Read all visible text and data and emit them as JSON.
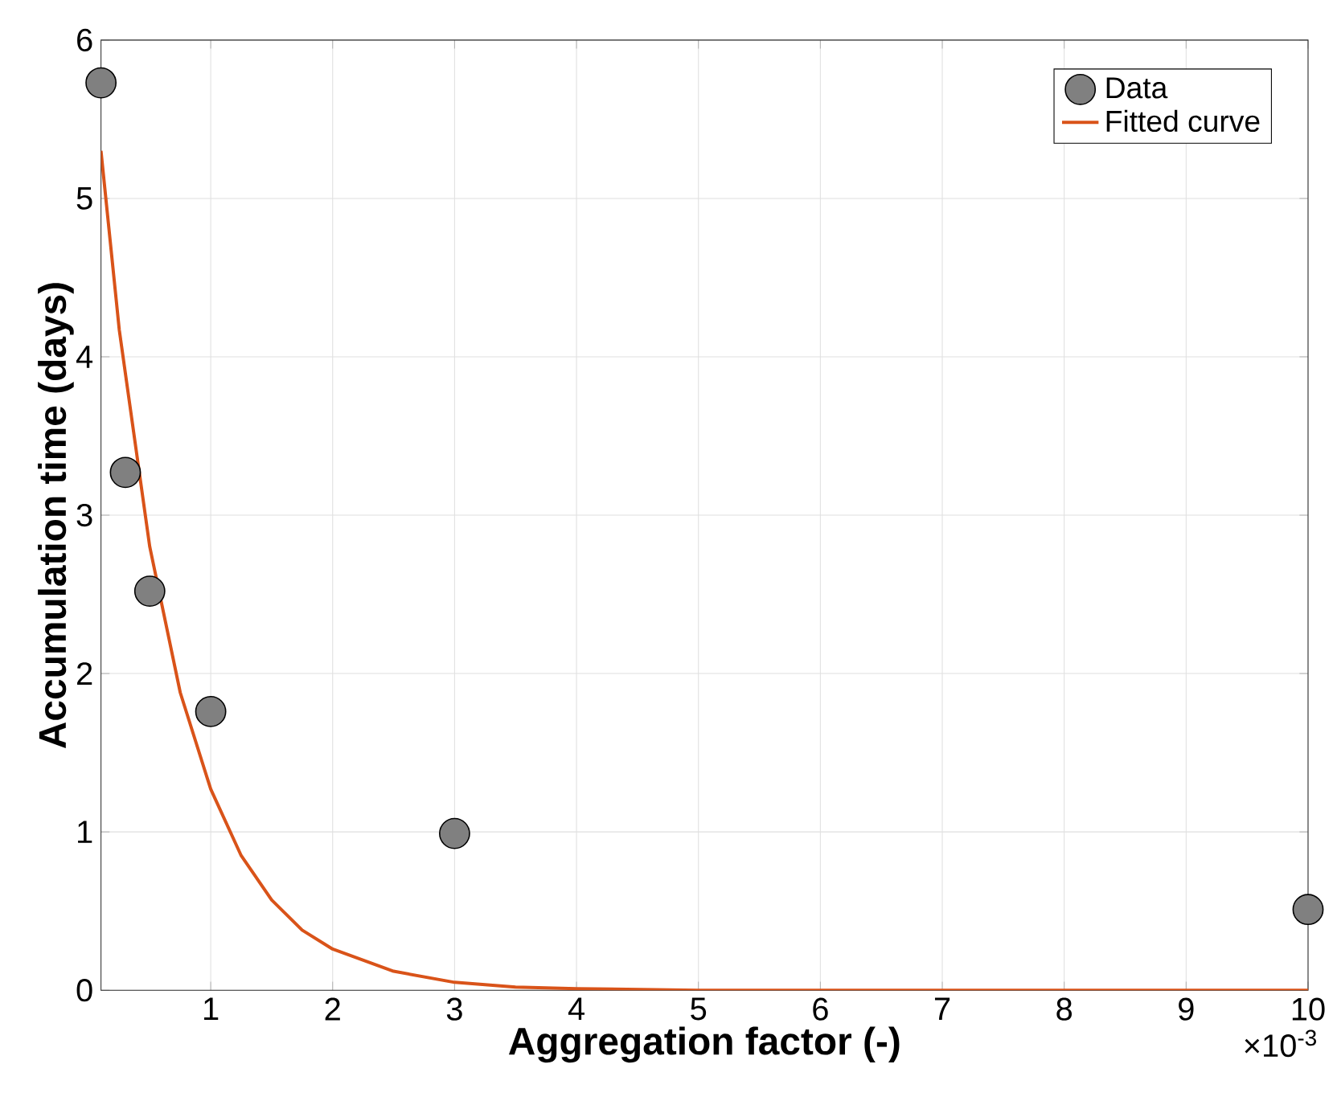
{
  "chart_data": {
    "type": "scatter",
    "xlabel": "Aggregation factor (-)",
    "ylabel": "Accumulation time (days)",
    "xlim": [
      0.1,
      10
    ],
    "xticks": [
      1,
      2,
      3,
      4,
      5,
      6,
      7,
      8,
      9,
      10
    ],
    "ylim": [
      0,
      6
    ],
    "yticks": [
      0,
      1,
      2,
      3,
      4,
      5,
      6
    ],
    "grid": true,
    "legend": "top right",
    "annotations": [
      "×10$^{-3}$"
    ],
    "series": [
      {
        "name": "Data",
        "color": "#808080",
        "x": [
          0.1,
          0.3,
          0.5,
          1,
          3,
          10
        ],
        "values": [
          5.73,
          3.27,
          2.52,
          1.76,
          0.99,
          0.51
        ]
      },
      {
        "name": "Fitted curve",
        "type": "line",
        "color": "#d95319",
        "x": [
          0.1,
          0.25,
          0.5,
          0.75,
          1,
          1.25,
          1.5,
          1.75,
          2,
          2.5,
          3,
          3.5,
          4,
          5,
          6,
          8,
          10
        ],
        "values": [
          5.3,
          4.17,
          2.8,
          1.88,
          1.27,
          0.85,
          0.57,
          0.38,
          0.26,
          0.12,
          0.05,
          0.02,
          0.01,
          0,
          0,
          0,
          0
        ]
      }
    ]
  }
}
